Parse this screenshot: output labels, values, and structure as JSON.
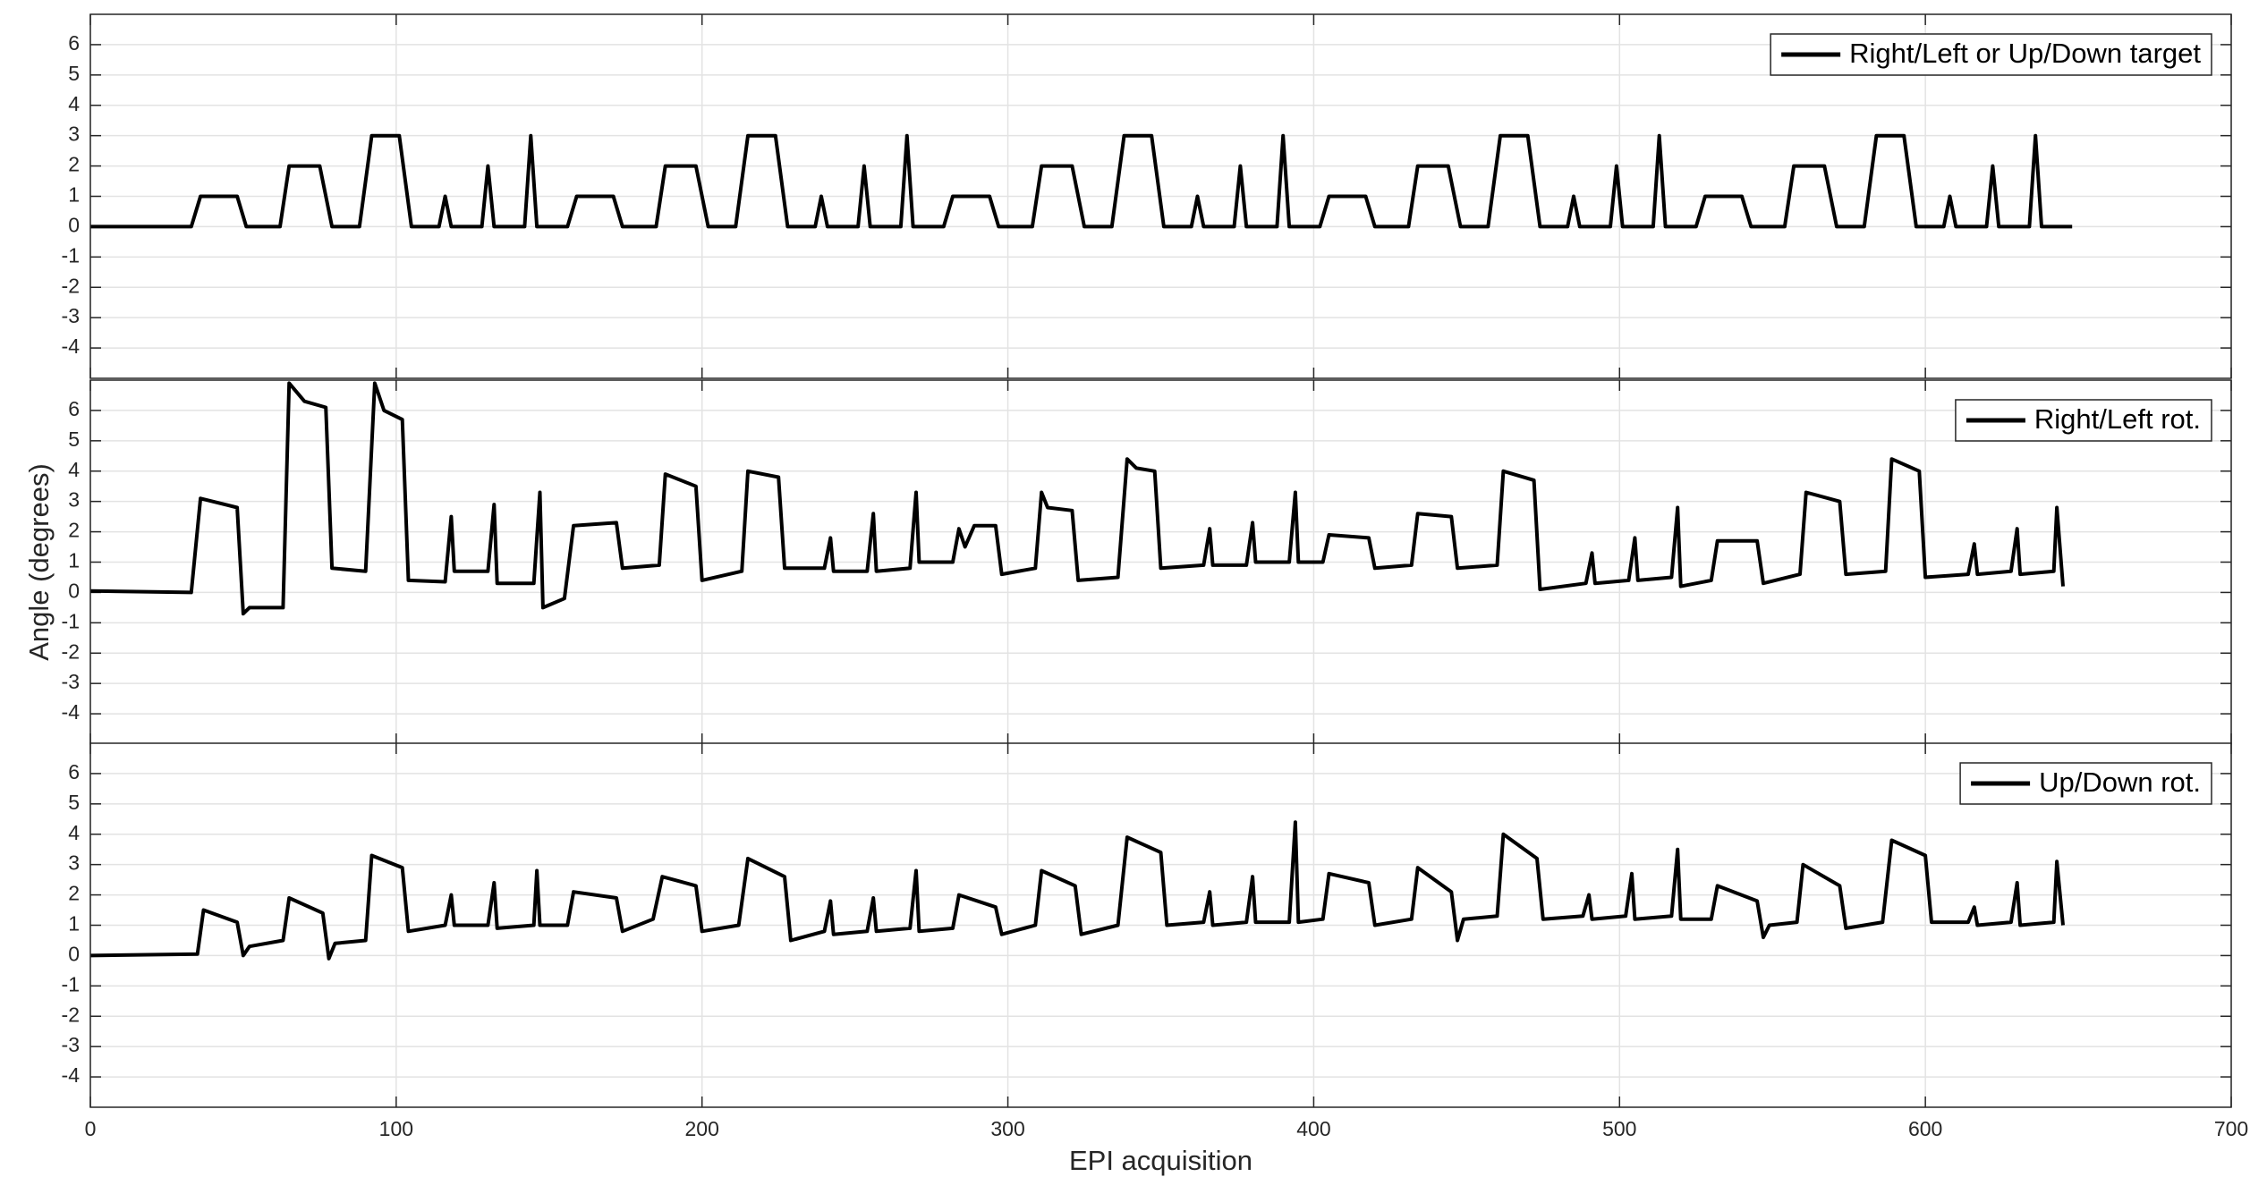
{
  "chart_data": [
    {
      "type": "line",
      "xlim": [
        0,
        700
      ],
      "xticks": [
        0,
        100,
        200,
        300,
        400,
        500,
        600,
        700
      ],
      "ylim": [
        -5,
        7
      ],
      "yticks": [
        -4,
        -3,
        -2,
        -1,
        0,
        1,
        2,
        3,
        4,
        5,
        6
      ],
      "grid": true,
      "legend": "upper right",
      "series": [
        {
          "name": "Right/Left or Up/Down target",
          "color": "#000000",
          "x": [
            0,
            33,
            36,
            48,
            51,
            62,
            65,
            75,
            79,
            88,
            92,
            101,
            105,
            114,
            116,
            118,
            128,
            130,
            132,
            142,
            144,
            146,
            156,
            159,
            171,
            174,
            185,
            188,
            198,
            202,
            211,
            215,
            224,
            228,
            237,
            239,
            241,
            251,
            253,
            255,
            265,
            267,
            269,
            279,
            282,
            294,
            297,
            308,
            311,
            321,
            325,
            334,
            338,
            347,
            351,
            360,
            362,
            364,
            374,
            376,
            378,
            388,
            390,
            392,
            402,
            405,
            417,
            420,
            431,
            434,
            444,
            448,
            457,
            461,
            470,
            474,
            483,
            485,
            487,
            497,
            499,
            501,
            511,
            513,
            515,
            525,
            528,
            540,
            543,
            554,
            557,
            567,
            571,
            580,
            584,
            593,
            597,
            606,
            608,
            610,
            620,
            622,
            624,
            634,
            636,
            638,
            648
          ],
          "values": [
            0,
            0,
            1,
            1,
            0,
            0,
            2,
            2,
            0,
            0,
            3,
            3,
            0,
            0,
            1,
            0,
            0,
            2,
            0,
            0,
            3,
            0,
            0,
            1,
            1,
            0,
            0,
            2,
            2,
            0,
            0,
            3,
            3,
            0,
            0,
            1,
            0,
            0,
            2,
            0,
            0,
            3,
            0,
            0,
            1,
            1,
            0,
            0,
            2,
            2,
            0,
            0,
            3,
            3,
            0,
            0,
            1,
            0,
            0,
            2,
            0,
            0,
            3,
            0,
            0,
            1,
            1,
            0,
            0,
            2,
            2,
            0,
            0,
            3,
            3,
            0,
            0,
            1,
            0,
            0,
            2,
            0,
            0,
            3,
            0,
            0,
            1,
            1,
            0,
            0,
            2,
            2,
            0,
            0,
            3,
            3,
            0,
            0,
            1,
            0,
            0,
            2,
            0,
            0,
            3,
            0,
            0
          ]
        }
      ]
    },
    {
      "type": "line",
      "xlim": [
        0,
        700
      ],
      "xticks": [
        0,
        100,
        200,
        300,
        400,
        500,
        600,
        700
      ],
      "ylim": [
        -5,
        7
      ],
      "yticks": [
        -4,
        -3,
        -2,
        -1,
        0,
        1,
        2,
        3,
        4,
        5,
        6
      ],
      "grid": true,
      "legend": "upper right",
      "ylabel": "Angle (degrees)",
      "series": [
        {
          "name": "Right/Left rot.",
          "color": "#000000",
          "x": [
            0,
            33,
            36,
            48,
            50,
            52,
            63,
            65,
            70,
            77,
            79,
            90,
            93,
            96,
            102,
            104,
            116,
            118,
            119,
            130,
            132,
            133,
            145,
            147,
            148,
            155,
            158,
            172,
            174,
            186,
            188,
            198,
            200,
            213,
            215,
            225,
            227,
            240,
            242,
            243,
            254,
            256,
            257,
            268,
            270,
            271,
            282,
            284,
            286,
            289,
            296,
            298,
            309,
            311,
            313,
            321,
            323,
            336,
            339,
            342,
            348,
            350,
            364,
            366,
            367,
            378,
            380,
            381,
            392,
            394,
            395,
            403,
            405,
            418,
            420,
            432,
            434,
            445,
            447,
            460,
            462,
            472,
            474,
            489,
            491,
            492,
            503,
            505,
            506,
            517,
            519,
            520,
            530,
            532,
            545,
            547,
            559,
            561,
            572,
            574,
            587,
            589,
            598,
            600,
            614,
            616,
            617,
            628,
            630,
            631,
            642,
            643,
            645
          ],
          "values": [
            0.05,
            0,
            3.1,
            2.8,
            -0.7,
            -0.5,
            -0.5,
            6.9,
            6.3,
            6.1,
            0.8,
            0.7,
            6.9,
            6.0,
            5.7,
            0.4,
            0.35,
            2.5,
            0.7,
            0.7,
            2.9,
            0.3,
            0.3,
            3.3,
            -0.5,
            -0.2,
            2.2,
            2.3,
            0.8,
            0.9,
            3.9,
            3.5,
            0.4,
            0.7,
            4.0,
            3.8,
            0.8,
            0.8,
            1.8,
            0.7,
            0.7,
            2.6,
            0.7,
            0.8,
            3.3,
            1.0,
            1.0,
            2.1,
            1.5,
            2.2,
            2.2,
            0.6,
            0.8,
            3.3,
            2.8,
            2.7,
            0.4,
            0.5,
            4.4,
            4.1,
            4.0,
            0.8,
            0.9,
            2.1,
            0.9,
            0.9,
            2.3,
            1.0,
            1.0,
            3.3,
            1.0,
            1.0,
            1.9,
            1.8,
            0.8,
            0.9,
            2.6,
            2.5,
            0.8,
            0.9,
            4.0,
            3.7,
            0.1,
            0.3,
            1.3,
            0.3,
            0.4,
            1.8,
            0.4,
            0.5,
            2.8,
            0.2,
            0.4,
            1.7,
            1.7,
            0.3,
            0.6,
            3.3,
            3.0,
            0.6,
            0.7,
            4.4,
            4.0,
            0.5,
            0.6,
            1.6,
            0.6,
            0.7,
            2.1,
            0.6,
            0.7,
            2.8,
            0.2
          ]
        }
      ]
    },
    {
      "type": "line",
      "xlim": [
        0,
        700
      ],
      "xticks": [
        0,
        100,
        200,
        300,
        400,
        500,
        600,
        700
      ],
      "ylim": [
        -5,
        7
      ],
      "yticks": [
        -4,
        -3,
        -2,
        -1,
        0,
        1,
        2,
        3,
        4,
        5,
        6
      ],
      "grid": true,
      "legend": "upper right",
      "xlabel": "EPI acquisition",
      "series": [
        {
          "name": "Up/Down rot.",
          "color": "#000000",
          "x": [
            0,
            35,
            37,
            48,
            50,
            52,
            63,
            65,
            76,
            78,
            80,
            90,
            92,
            102,
            104,
            116,
            118,
            119,
            130,
            132,
            133,
            145,
            146,
            147,
            156,
            158,
            172,
            174,
            184,
            187,
            198,
            200,
            212,
            215,
            227,
            229,
            240,
            242,
            243,
            254,
            256,
            257,
            268,
            270,
            271,
            282,
            284,
            296,
            298,
            309,
            311,
            322,
            324,
            336,
            339,
            350,
            352,
            364,
            366,
            367,
            378,
            380,
            381,
            392,
            394,
            395,
            403,
            405,
            418,
            420,
            432,
            434,
            445,
            447,
            449,
            460,
            462,
            473,
            475,
            488,
            490,
            491,
            502,
            504,
            505,
            517,
            519,
            520,
            530,
            532,
            545,
            547,
            549,
            558,
            560,
            572,
            574,
            586,
            589,
            600,
            602,
            614,
            616,
            617,
            628,
            630,
            631,
            642,
            643,
            645
          ],
          "values": [
            0,
            0.05,
            1.5,
            1.1,
            0,
            0.3,
            0.5,
            1.9,
            1.4,
            -0.1,
            0.4,
            0.5,
            3.3,
            2.9,
            0.8,
            1.0,
            2.0,
            1.0,
            1.0,
            2.4,
            0.9,
            1.0,
            2.8,
            1.0,
            1.0,
            2.1,
            1.9,
            0.8,
            1.2,
            2.6,
            2.3,
            0.8,
            1.0,
            3.2,
            2.6,
            0.5,
            0.8,
            1.8,
            0.7,
            0.8,
            1.9,
            0.8,
            0.9,
            2.8,
            0.8,
            0.9,
            2.0,
            1.6,
            0.7,
            1.0,
            2.8,
            2.3,
            0.7,
            1.0,
            3.9,
            3.4,
            1.0,
            1.1,
            2.1,
            1.0,
            1.1,
            2.6,
            1.1,
            1.1,
            4.4,
            1.1,
            1.2,
            2.7,
            2.4,
            1.0,
            1.2,
            2.9,
            2.1,
            0.5,
            1.2,
            1.3,
            4.0,
            3.2,
            1.2,
            1.3,
            2.0,
            1.2,
            1.3,
            2.7,
            1.2,
            1.3,
            3.5,
            1.2,
            1.2,
            2.3,
            1.8,
            0.6,
            1.0,
            1.1,
            3.0,
            2.3,
            0.9,
            1.1,
            3.8,
            3.3,
            1.1,
            1.1,
            1.6,
            1.0,
            1.1,
            2.4,
            1.0,
            1.1,
            3.1,
            1.0
          ]
        }
      ]
    }
  ]
}
